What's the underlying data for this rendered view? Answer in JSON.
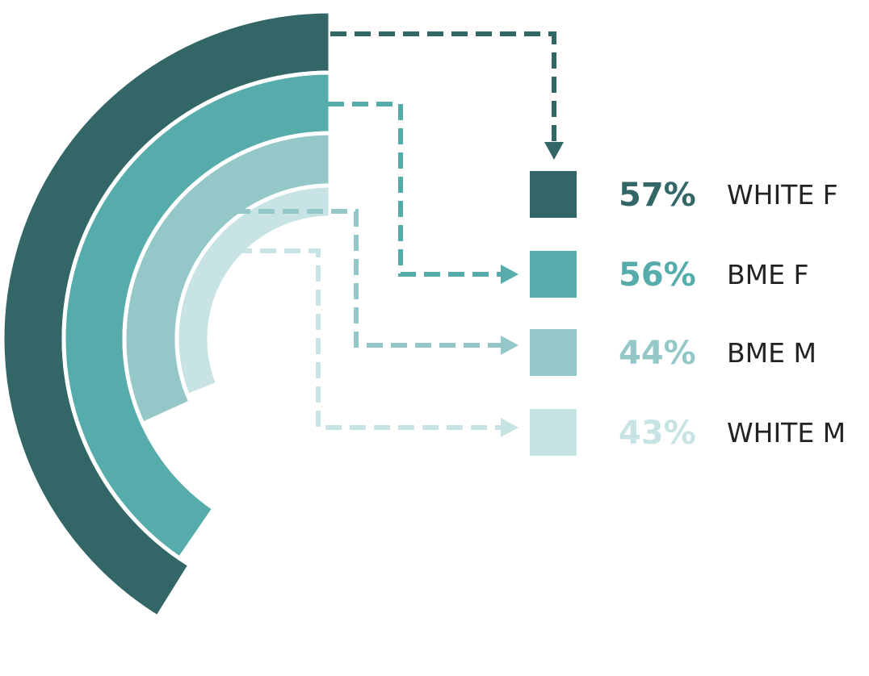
{
  "chart_data": {
    "type": "radial-bar",
    "title": "",
    "xlabel": "",
    "ylabel": "",
    "value_max": 100,
    "legend_position": "right",
    "series": [
      {
        "name": "WHITE F",
        "value": 57,
        "value_label": "57%",
        "color": "#336666"
      },
      {
        "name": "BME F",
        "value": 56,
        "value_label": "56%",
        "color": "#56abab"
      },
      {
        "name": "BME M",
        "value": 44,
        "value_label": "44%",
        "color": "#94c7c7"
      },
      {
        "name": "WHITE M",
        "value": 43,
        "value_label": "43%",
        "color": "#c7e3e3"
      }
    ]
  }
}
